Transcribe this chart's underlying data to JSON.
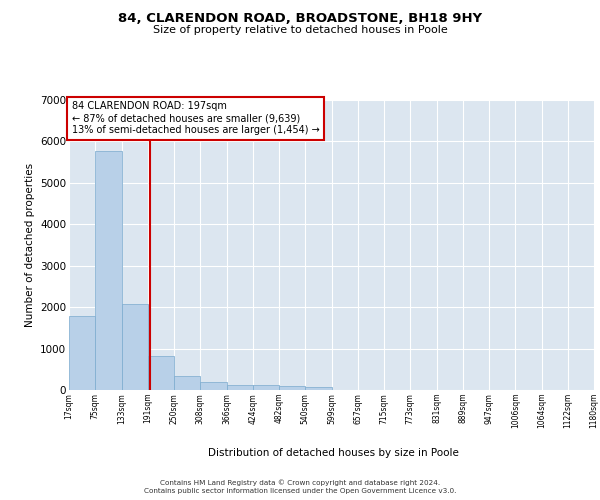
{
  "title": "84, CLARENDON ROAD, BROADSTONE, BH18 9HY",
  "subtitle": "Size of property relative to detached houses in Poole",
  "xlabel": "Distribution of detached houses by size in Poole",
  "ylabel": "Number of detached properties",
  "bar_color": "#b8d0e8",
  "bar_edge_color": "#7aaace",
  "highlight_line_color": "#cc0000",
  "highlight_box_color": "#cc0000",
  "background_color": "#dce6f0",
  "grid_color": "#ffffff",
  "annotation_text": "84 CLARENDON ROAD: 197sqm\n← 87% of detached houses are smaller (9,639)\n13% of semi-detached houses are larger (1,454) →",
  "footer_line1": "Contains HM Land Registry data © Crown copyright and database right 2024.",
  "footer_line2": "Contains public sector information licensed under the Open Government Licence v3.0.",
  "tick_labels": [
    "17sqm",
    "75sqm",
    "133sqm",
    "191sqm",
    "250sqm",
    "308sqm",
    "366sqm",
    "424sqm",
    "482sqm",
    "540sqm",
    "599sqm",
    "657sqm",
    "715sqm",
    "773sqm",
    "831sqm",
    "889sqm",
    "947sqm",
    "1006sqm",
    "1064sqm",
    "1122sqm",
    "1180sqm"
  ],
  "bar_values": [
    1780,
    5780,
    2070,
    820,
    340,
    190,
    120,
    110,
    95,
    75,
    0,
    0,
    0,
    0,
    0,
    0,
    0,
    0,
    0,
    0
  ],
  "bin_edges": [
    17,
    75,
    133,
    191,
    250,
    308,
    366,
    424,
    482,
    540,
    599,
    657,
    715,
    773,
    831,
    889,
    947,
    1006,
    1064,
    1122,
    1180
  ],
  "prop_val": 197,
  "ylim": [
    0,
    7000
  ],
  "yticks": [
    0,
    1000,
    2000,
    3000,
    4000,
    5000,
    6000,
    7000
  ],
  "n_bars": 20
}
